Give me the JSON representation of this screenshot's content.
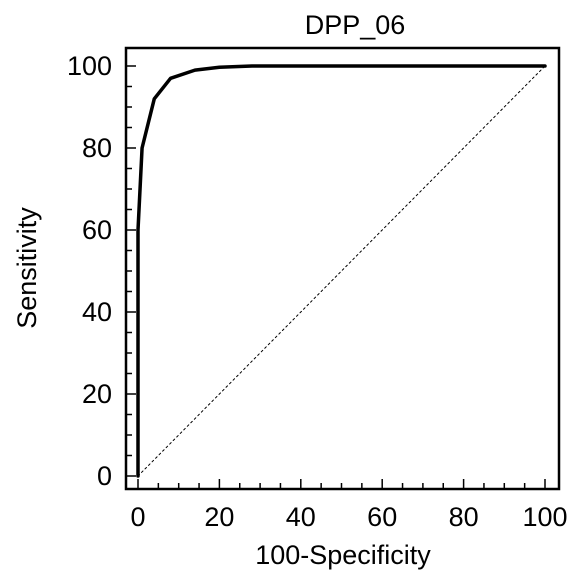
{
  "chart_data": {
    "type": "line",
    "title": "DPP_06",
    "xlabel": "100-Specificity",
    "ylabel": "Sensitivity",
    "xlim": [
      0,
      100
    ],
    "ylim": [
      0,
      100
    ],
    "x_ticks": [
      0,
      20,
      40,
      60,
      80,
      100
    ],
    "y_ticks": [
      0,
      20,
      40,
      60,
      80,
      100
    ],
    "x_tick_labels": [
      "0",
      "20",
      "40",
      "60",
      "80",
      "100"
    ],
    "y_tick_labels": [
      "0",
      "20",
      "40",
      "60",
      "80",
      "100"
    ],
    "grid": false,
    "legend": "none",
    "series": [
      {
        "style": "solid",
        "color": "#000000",
        "points": [
          [
            0,
            0
          ],
          [
            0,
            60
          ],
          [
            1,
            80
          ],
          [
            4,
            92
          ],
          [
            8,
            97
          ],
          [
            14,
            99
          ],
          [
            20,
            99.7
          ],
          [
            28,
            100
          ],
          [
            100,
            100
          ]
        ]
      },
      {
        "style": "dotted",
        "color": "#000000",
        "points": [
          [
            0,
            0
          ],
          [
            100,
            100
          ]
        ]
      }
    ]
  }
}
